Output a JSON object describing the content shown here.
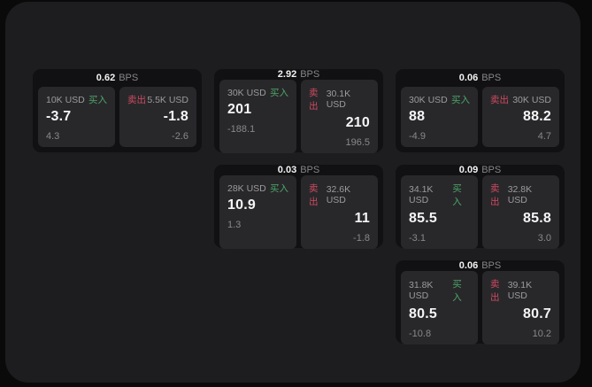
{
  "theme": {
    "backdrop": "#0a0a0b",
    "panel_bg": "#1d1d1f",
    "card_bg": "#111113",
    "tile_bg": "#28282b",
    "text_primary": "#f5f5f6",
    "text_muted": "#88888c",
    "buy_green": "#4da567",
    "sell_red": "#cf4a5f"
  },
  "labels": {
    "bps_suffix": "BPS",
    "buy": "买入",
    "sell": "卖出"
  },
  "cards": [
    {
      "bps": "0.62",
      "buy": {
        "amount": "10K USD",
        "price": "-3.7",
        "delta": "4.3"
      },
      "sell": {
        "amount": "5.5K USD",
        "price": "-1.8",
        "delta": "-2.6"
      }
    },
    {
      "bps": "2.92",
      "buy": {
        "amount": "30K USD",
        "price": "201",
        "delta": "-188.1"
      },
      "sell": {
        "amount": "30.1K USD",
        "price": "210",
        "delta": "196.5"
      }
    },
    {
      "bps": "0.06",
      "buy": {
        "amount": "30K USD",
        "price": "88",
        "delta": "-4.9"
      },
      "sell": {
        "amount": "30K USD",
        "price": "88.2",
        "delta": "4.7"
      }
    },
    {
      "bps": "0.03",
      "buy": {
        "amount": "28K USD",
        "price": "10.9",
        "delta": "1.3"
      },
      "sell": {
        "amount": "32.6K USD",
        "price": "11",
        "delta": "-1.8"
      }
    },
    {
      "bps": "0.09",
      "buy": {
        "amount": "34.1K USD",
        "price": "85.5",
        "delta": "-3.1"
      },
      "sell": {
        "amount": "32.8K USD",
        "price": "85.8",
        "delta": "3.0"
      }
    },
    {
      "bps": "0.06",
      "buy": {
        "amount": "31.8K USD",
        "price": "80.5",
        "delta": "-10.8"
      },
      "sell": {
        "amount": "39.1K USD",
        "price": "80.7",
        "delta": "10.2"
      }
    }
  ]
}
